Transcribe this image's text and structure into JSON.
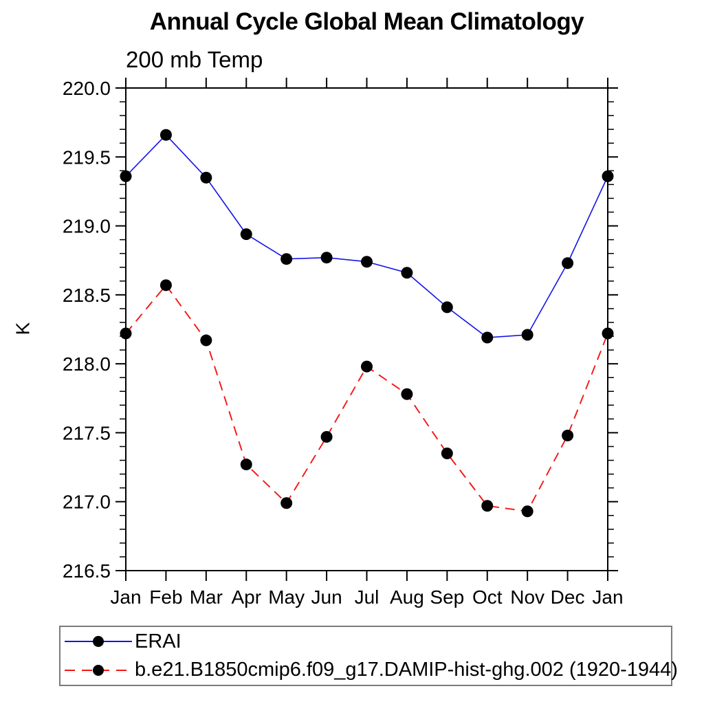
{
  "chart": {
    "title": "Annual Cycle Global Mean Climatology",
    "subtitle": "200 mb Temp",
    "ylabel": "K"
  },
  "chart_data": {
    "type": "line",
    "title": "Annual Cycle Global Mean Climatology",
    "subtitle": "200 mb Temp",
    "xlabel": "",
    "ylabel": "K",
    "categories": [
      "Jan",
      "Feb",
      "Mar",
      "Apr",
      "May",
      "Jun",
      "Jul",
      "Aug",
      "Sep",
      "Oct",
      "Nov",
      "Dec",
      "Jan"
    ],
    "ylim": [
      216.5,
      220.0
    ],
    "ytick_major_step": 0.5,
    "ytick_minor_step": 0.1,
    "ytick_labels": [
      "216.5",
      "217.0",
      "217.5",
      "218.0",
      "218.5",
      "219.0",
      "219.5",
      "220.0"
    ],
    "grid": false,
    "legend_position": "bottom",
    "axis_color": "#000000",
    "marker_color": "#000000",
    "series": [
      {
        "name": "ERAI",
        "color": "#1414e6",
        "style": "solid",
        "marker": "circle",
        "values": [
          219.36,
          219.66,
          219.35,
          218.94,
          218.76,
          218.77,
          218.74,
          218.66,
          218.41,
          218.19,
          218.21,
          218.73,
          219.36
        ]
      },
      {
        "name": "b.e21.B1850cmip6.f09_g17.DAMIP-hist-ghg.002 (1920-1944)",
        "color": "#f51414",
        "style": "dashed",
        "marker": "circle",
        "values": [
          218.22,
          218.57,
          218.17,
          217.27,
          216.99,
          217.47,
          217.98,
          217.78,
          217.35,
          216.97,
          216.93,
          217.48,
          218.22
        ]
      }
    ]
  }
}
